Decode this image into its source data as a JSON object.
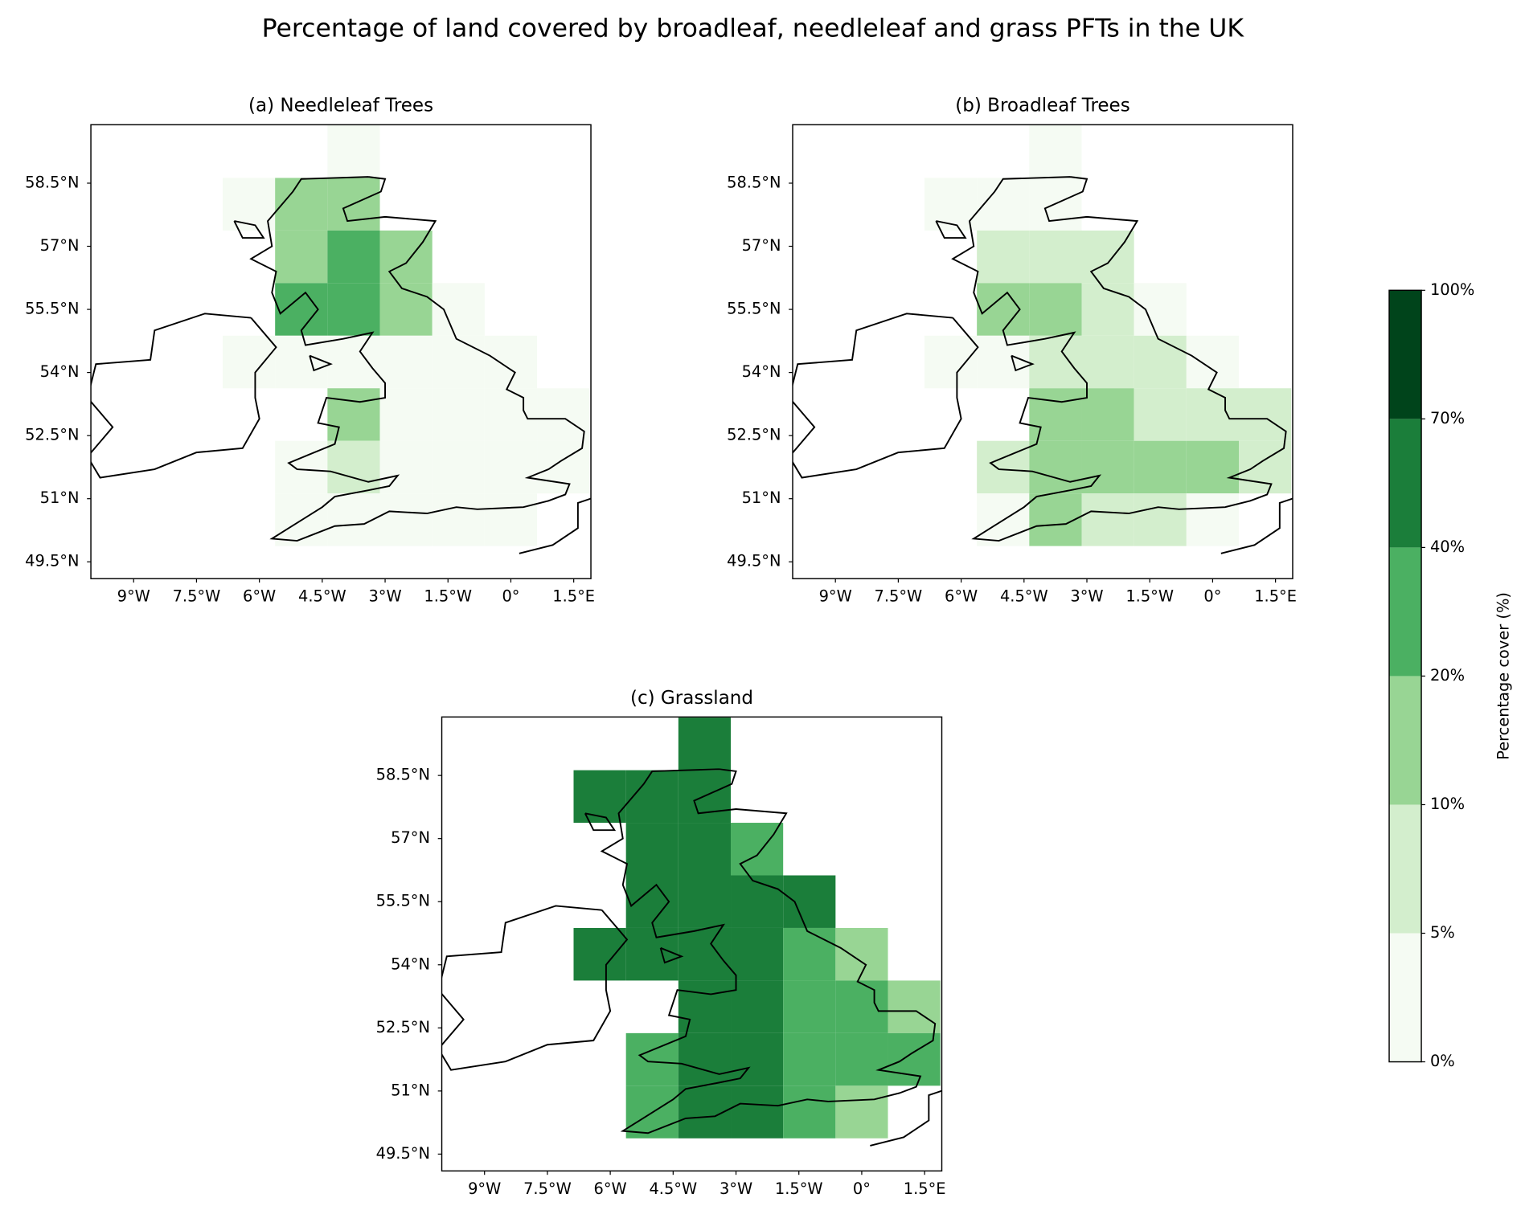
{
  "title": "Percentage of land covered by broadleaf, needleleaf and grass PFTs in the UK",
  "xlim": [
    -10.02,
    1.91
  ],
  "ylim": [
    49.1,
    59.89
  ],
  "lon_ticks": [
    {
      "value": -9,
      "label": "9°W"
    },
    {
      "value": -7.5,
      "label": "7.5°W"
    },
    {
      "value": -6,
      "label": "6°W"
    },
    {
      "value": -4.5,
      "label": "4.5°W"
    },
    {
      "value": -3,
      "label": "3°W"
    },
    {
      "value": -1.5,
      "label": "1.5°W"
    },
    {
      "value": 0,
      "label": "0°"
    },
    {
      "value": 1.5,
      "label": "1.5°E"
    }
  ],
  "lat_ticks": [
    {
      "value": 58.5,
      "label": "58.5°N"
    },
    {
      "value": 57,
      "label": "57°N"
    },
    {
      "value": 55.5,
      "label": "55.5°N"
    },
    {
      "value": 54,
      "label": "54°N"
    },
    {
      "value": 52.5,
      "label": "52.5°N"
    },
    {
      "value": 51,
      "label": "51°N"
    },
    {
      "value": 49.5,
      "label": "49.5°N"
    }
  ],
  "grid": {
    "lon0": -8.125,
    "lat0": 59.875,
    "step": 1.25
  },
  "maps": [
    {
      "title": "(a) Needleleaf Trees",
      "values": [
        [
          null,
          null,
          null,
          3,
          null,
          null,
          null,
          null
        ],
        [
          null,
          3,
          12,
          15,
          null,
          null,
          null,
          null
        ],
        [
          null,
          null,
          15,
          25,
          12,
          null,
          null,
          null
        ],
        [
          null,
          null,
          25,
          20,
          15,
          3,
          null,
          null
        ],
        [
          null,
          2,
          3,
          4,
          3,
          3,
          3,
          null
        ],
        [
          null,
          null,
          null,
          15,
          3,
          2,
          2,
          3
        ],
        [
          null,
          null,
          2,
          5,
          3,
          2,
          2,
          2
        ],
        [
          null,
          null,
          2,
          3,
          2,
          2,
          2,
          null
        ]
      ]
    },
    {
      "title": "(b) Broadleaf Trees",
      "values": [
        [
          null,
          null,
          null,
          2,
          null,
          null,
          null,
          null
        ],
        [
          null,
          3,
          4,
          4,
          null,
          null,
          null,
          null
        ],
        [
          null,
          null,
          8,
          8,
          8,
          null,
          null,
          null
        ],
        [
          null,
          null,
          15,
          12,
          8,
          4,
          null,
          null
        ],
        [
          null,
          4,
          3,
          8,
          8,
          8,
          4,
          null
        ],
        [
          null,
          null,
          null,
          12,
          12,
          8,
          8,
          6
        ],
        [
          null,
          null,
          8,
          15,
          12,
          15,
          12,
          8
        ],
        [
          null,
          null,
          3,
          12,
          8,
          8,
          4,
          null
        ]
      ]
    },
    {
      "title": "(c) Grassland",
      "values": [
        [
          null,
          null,
          null,
          50,
          null,
          null,
          null,
          null
        ],
        [
          null,
          40,
          50,
          45,
          null,
          null,
          null,
          null
        ],
        [
          null,
          null,
          50,
          45,
          30,
          null,
          null,
          null
        ],
        [
          null,
          null,
          55,
          55,
          50,
          40,
          null,
          null
        ],
        [
          null,
          55,
          60,
          55,
          60,
          35,
          15,
          null
        ],
        [
          null,
          null,
          null,
          55,
          60,
          35,
          25,
          15
        ],
        [
          null,
          null,
          30,
          55,
          45,
          35,
          30,
          25
        ],
        [
          null,
          null,
          30,
          45,
          40,
          20,
          10,
          null
        ]
      ]
    }
  ],
  "colorbar": {
    "label": "Percentage cover (%)",
    "ticks": [
      {
        "value": 0,
        "label": "0%"
      },
      {
        "value": 5,
        "label": "5%"
      },
      {
        "value": 10,
        "label": "10%"
      },
      {
        "value": 20,
        "label": "20%"
      },
      {
        "value": 40,
        "label": "40%"
      },
      {
        "value": 70,
        "label": "70%"
      },
      {
        "value": 100,
        "label": "100%"
      }
    ],
    "colors": [
      "#f5fbf3",
      "#d3eecd",
      "#98d594",
      "#4bb062",
      "#1b7e3a",
      "#00441b"
    ]
  }
}
